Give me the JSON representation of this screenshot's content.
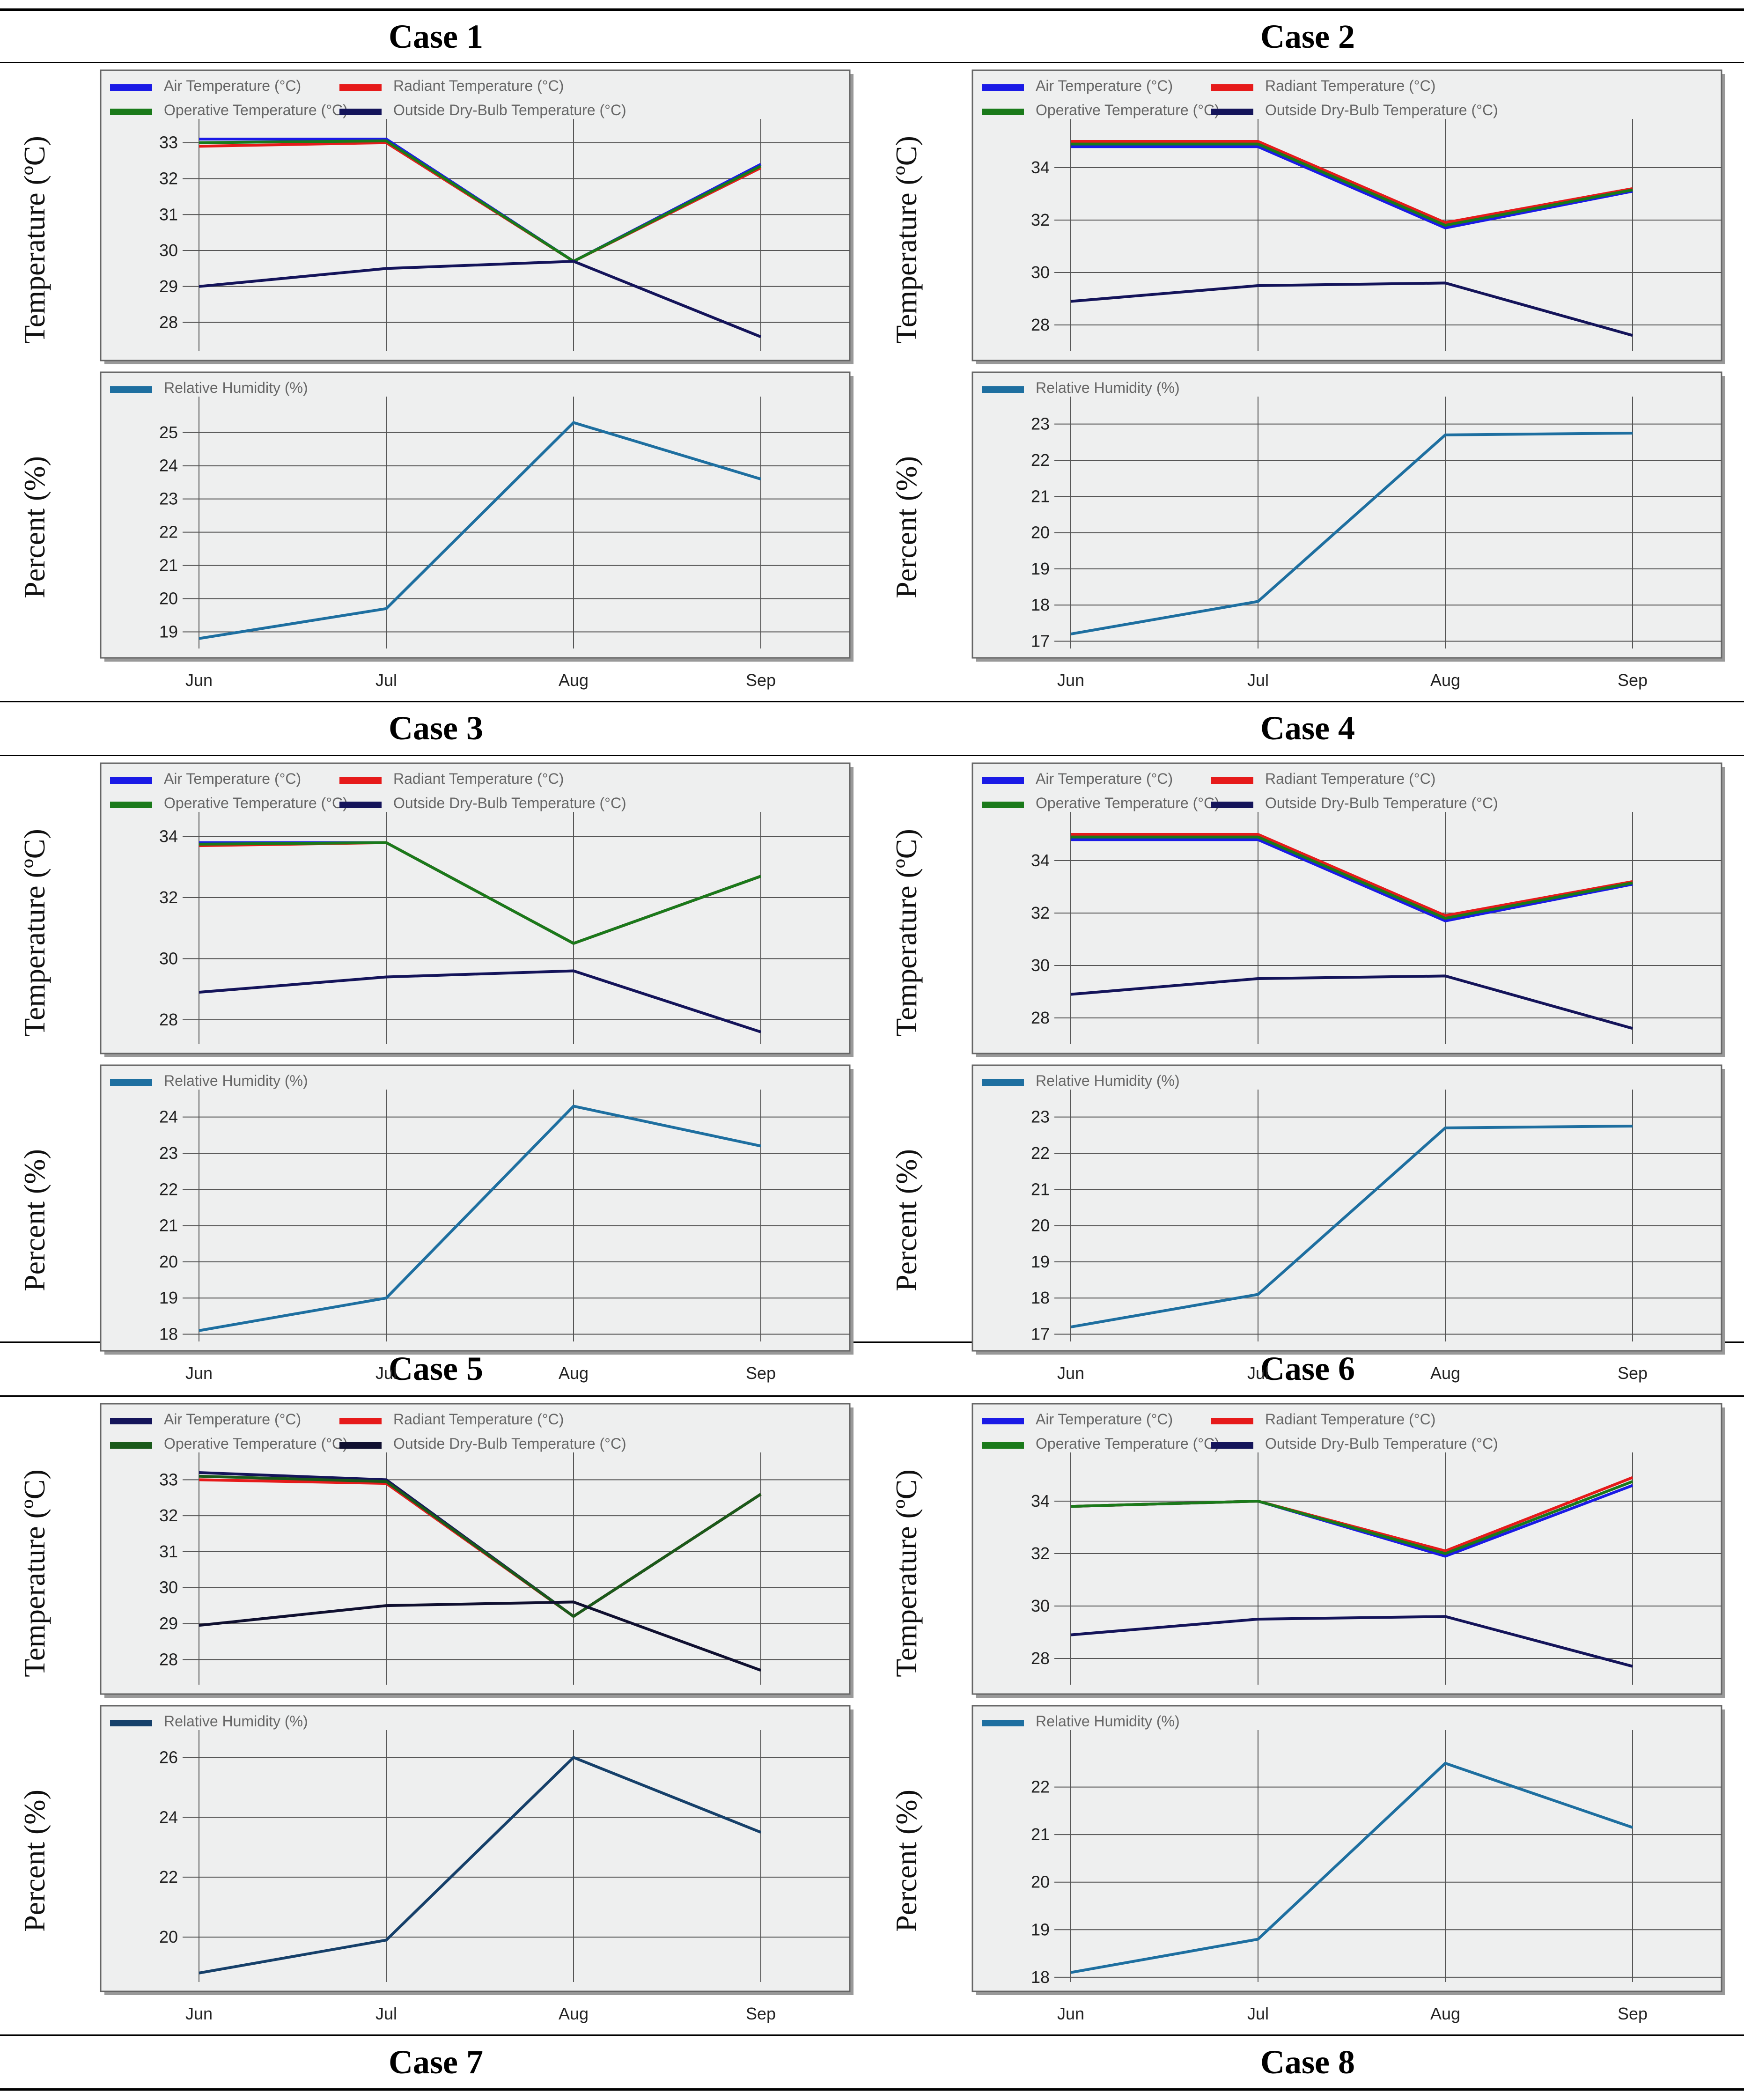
{
  "cases": [
    {
      "title": "Case 1",
      "chart_data": {
        "type": "line",
        "months": [
          "Jun",
          "Jul",
          "Aug",
          "Sep"
        ],
        "temperature": {
          "ylabel": "Temperature (ºC)",
          "ylim": [
            27.2,
            33.4
          ],
          "ticks": [
            28,
            29,
            30,
            31,
            32,
            33
          ],
          "series": [
            {
              "name": "Air Temperature (°C)",
              "color": "#1a1ae6",
              "values": [
                33.1,
                33.1,
                29.7,
                32.4
              ]
            },
            {
              "name": "Radiant Temperature (°C)",
              "color": "#e61a1a",
              "values": [
                32.9,
                33.0,
                29.7,
                32.3
              ]
            },
            {
              "name": "Operative Temperature (°C)",
              "color": "#1a7a1a",
              "values": [
                33.0,
                33.05,
                29.7,
                32.35
              ]
            },
            {
              "name": "Outside Dry-Bulb Temperature (°C)",
              "color": "#14145a",
              "values": [
                29.0,
                29.5,
                29.7,
                27.6
              ]
            }
          ]
        },
        "humidity": {
          "ylabel": "Percent (%)",
          "ylim": [
            18.5,
            25.8
          ],
          "ticks": [
            19,
            20,
            21,
            22,
            23,
            24,
            25
          ],
          "series": [
            {
              "name": "Relative Humidity (%)",
              "color": "#1e6fa0",
              "values": [
                18.8,
                19.7,
                25.3,
                23.6
              ]
            }
          ]
        }
      }
    },
    {
      "title": "Case 2",
      "chart_data": {
        "type": "line",
        "months": [
          "Jun",
          "Jul",
          "Aug",
          "Sep"
        ],
        "temperature": {
          "ylabel": "Temperature (ºC)",
          "ylim": [
            27.0,
            35.5
          ],
          "ticks": [
            28,
            30,
            32,
            34
          ],
          "series": [
            {
              "name": "Air Temperature (°C)",
              "color": "#1a1ae6",
              "values": [
                34.8,
                34.8,
                31.7,
                33.1
              ]
            },
            {
              "name": "Radiant Temperature (°C)",
              "color": "#e61a1a",
              "values": [
                35.0,
                35.0,
                31.9,
                33.2
              ]
            },
            {
              "name": "Operative Temperature (°C)",
              "color": "#1a7a1a",
              "values": [
                34.9,
                34.9,
                31.8,
                33.15
              ]
            },
            {
              "name": "Outside Dry-Bulb Temperature (°C)",
              "color": "#14145a",
              "values": [
                28.9,
                29.5,
                29.6,
                27.6
              ]
            }
          ]
        },
        "humidity": {
          "ylabel": "Percent (%)",
          "ylim": [
            16.8,
            23.5
          ],
          "ticks": [
            17,
            18,
            19,
            20,
            21,
            22,
            23
          ],
          "series": [
            {
              "name": "Relative Humidity (%)",
              "color": "#1e6fa0",
              "values": [
                17.2,
                18.1,
                22.7,
                22.75
              ]
            }
          ]
        }
      }
    },
    {
      "title": "Case 3",
      "chart_data": {
        "type": "line",
        "months": [
          "Jun",
          "Jul",
          "Aug",
          "Sep"
        ],
        "temperature": {
          "ylabel": "Temperature (ºC)",
          "ylim": [
            27.2,
            34.5
          ],
          "ticks": [
            28,
            30,
            32,
            34
          ],
          "series": [
            {
              "name": "Air Temperature (°C)",
              "color": "#1a1ae6",
              "values": [
                33.8,
                33.8,
                30.5,
                32.7
              ]
            },
            {
              "name": "Radiant Temperature (°C)",
              "color": "#e61a1a",
              "values": [
                33.7,
                33.8,
                30.5,
                32.7
              ]
            },
            {
              "name": "Operative Temperature (°C)",
              "color": "#1a7a1a",
              "values": [
                33.75,
                33.8,
                30.5,
                32.7
              ]
            },
            {
              "name": "Outside Dry-Bulb Temperature (°C)",
              "color": "#14145a",
              "values": [
                28.9,
                29.4,
                29.6,
                27.6
              ]
            }
          ]
        },
        "humidity": {
          "ylabel": "Percent (%)",
          "ylim": [
            17.8,
            24.5
          ],
          "ticks": [
            18,
            19,
            20,
            21,
            22,
            23,
            24
          ],
          "series": [
            {
              "name": "Relative Humidity (%)",
              "color": "#1e6fa0",
              "values": [
                18.1,
                19.0,
                24.3,
                23.2
              ]
            }
          ]
        }
      }
    },
    {
      "title": "Case 4",
      "chart_data": {
        "type": "line",
        "months": [
          "Jun",
          "Jul",
          "Aug",
          "Sep"
        ],
        "temperature": {
          "ylabel": "Temperature (ºC)",
          "ylim": [
            27.0,
            35.5
          ],
          "ticks": [
            28,
            30,
            32,
            34
          ],
          "series": [
            {
              "name": "Air Temperature (°C)",
              "color": "#1a1ae6",
              "values": [
                34.8,
                34.8,
                31.7,
                33.1
              ]
            },
            {
              "name": "Radiant Temperature (°C)",
              "color": "#e61a1a",
              "values": [
                35.0,
                35.0,
                31.9,
                33.2
              ]
            },
            {
              "name": "Operative Temperature (°C)",
              "color": "#1a7a1a",
              "values": [
                34.9,
                34.9,
                31.8,
                33.15
              ]
            },
            {
              "name": "Outside Dry-Bulb Temperature (°C)",
              "color": "#14145a",
              "values": [
                28.9,
                29.5,
                29.6,
                27.6
              ]
            }
          ]
        },
        "humidity": {
          "ylabel": "Percent (%)",
          "ylim": [
            16.8,
            23.5
          ],
          "ticks": [
            17,
            18,
            19,
            20,
            21,
            22,
            23
          ],
          "series": [
            {
              "name": "Relative Humidity (%)",
              "color": "#1e6fa0",
              "values": [
                17.2,
                18.1,
                22.7,
                22.75
              ]
            }
          ]
        }
      }
    },
    {
      "title": "Case 5",
      "chart_data": {
        "type": "line",
        "months": [
          "Jun",
          "Jul",
          "Aug",
          "Sep"
        ],
        "temperature": {
          "ylabel": "Temperature (ºC)",
          "ylim": [
            27.3,
            33.5
          ],
          "ticks": [
            28,
            29,
            30,
            31,
            32,
            33
          ],
          "series": [
            {
              "name": "Air Temperature (°C)",
              "color": "#14145a",
              "values": [
                33.2,
                33.0,
                29.2,
                32.6
              ]
            },
            {
              "name": "Radiant Temperature (°C)",
              "color": "#e61a1a",
              "values": [
                33.0,
                32.9,
                29.2,
                32.6
              ]
            },
            {
              "name": "Operative Temperature (°C)",
              "color": "#1a5a1a",
              "values": [
                33.1,
                32.95,
                29.2,
                32.6
              ]
            },
            {
              "name": "Outside Dry-Bulb Temperature (°C)",
              "color": "#101030",
              "values": [
                28.95,
                29.5,
                29.6,
                27.7
              ]
            }
          ]
        },
        "humidity": {
          "ylabel": "Percent (%)",
          "ylim": [
            18.5,
            26.6
          ],
          "ticks": [
            20,
            22,
            24,
            26
          ],
          "series": [
            {
              "name": "Relative Humidity (%)",
              "color": "#16406a",
              "values": [
                18.8,
                19.9,
                26.0,
                23.5
              ]
            }
          ]
        }
      }
    },
    {
      "title": "Case 6",
      "chart_data": {
        "type": "line",
        "months": [
          "Jun",
          "Jul",
          "Aug",
          "Sep"
        ],
        "temperature": {
          "ylabel": "Temperature (ºC)",
          "ylim": [
            27.0,
            35.5
          ],
          "ticks": [
            28,
            30,
            32,
            34
          ],
          "series": [
            {
              "name": "Air Temperature (°C)",
              "color": "#1a1ae6",
              "values": [
                33.8,
                34.0,
                31.9,
                34.6
              ]
            },
            {
              "name": "Radiant Temperature (°C)",
              "color": "#e61a1a",
              "values": [
                33.8,
                34.0,
                32.1,
                34.9
              ]
            },
            {
              "name": "Operative Temperature (°C)",
              "color": "#1a7a1a",
              "values": [
                33.8,
                34.0,
                32.0,
                34.75
              ]
            },
            {
              "name": "Outside Dry-Bulb Temperature (°C)",
              "color": "#14145a",
              "values": [
                28.9,
                29.5,
                29.6,
                27.7
              ]
            }
          ]
        },
        "humidity": {
          "ylabel": "Percent (%)",
          "ylim": [
            17.9,
            23.0
          ],
          "ticks": [
            18,
            19,
            20,
            21,
            22
          ],
          "series": [
            {
              "name": "Relative Humidity (%)",
              "color": "#1e6fa0",
              "values": [
                18.1,
                18.8,
                22.5,
                21.15
              ]
            }
          ]
        }
      }
    }
  ],
  "bottom_titles": [
    "Case 7",
    "Case 8"
  ]
}
